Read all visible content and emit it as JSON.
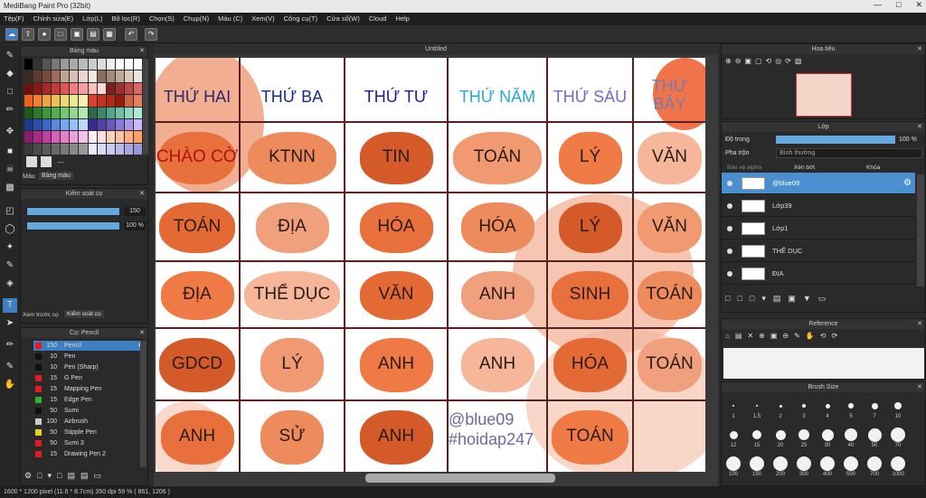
{
  "title": "MediBang Paint Pro (32bit)",
  "menu": [
    "Tệp(F)",
    "Chỉnh sửa(E)",
    "Lớp(L)",
    "Bộ lọc(R)",
    "Chọn(S)",
    "Chụp(N)",
    "Màu (C)",
    "Xem(V)",
    "Công cụ(T)",
    "Cửa sổ(W)",
    "Cloud",
    "Help"
  ],
  "palette": {
    "title": "Bảng màu",
    "tab1": "Màu",
    "tab2": "Bảng màu",
    "dash": "---"
  },
  "control": {
    "title": "Kiểm soát cọ",
    "size": "150",
    "opacity": "100 %",
    "tab1": "Xem trước cọ",
    "tab2": "Kiểm soát cọ"
  },
  "brush": {
    "title": "Cọ: Pencil",
    "items": [
      {
        "n": "150",
        "name": "Pencil",
        "color": "#e31b23"
      },
      {
        "n": "10",
        "name": "Pen",
        "color": "#111111"
      },
      {
        "n": "10",
        "name": "Pen (Sharp)",
        "color": "#111111"
      },
      {
        "n": "15",
        "name": "G Pen",
        "color": "#e31b23"
      },
      {
        "n": "15",
        "name": "Mapping Pen",
        "color": "#e31b23"
      },
      {
        "n": "15",
        "name": "Edge Pen",
        "color": "#2bb32b"
      },
      {
        "n": "50",
        "name": "Sumi",
        "color": "#111111"
      },
      {
        "n": "100",
        "name": "Airbrush",
        "color": "#cccccc"
      },
      {
        "n": "50",
        "name": "Stipple Pen",
        "color": "#e6d21a"
      },
      {
        "n": "50",
        "name": "Sumi 3",
        "color": "#e31b23"
      },
      {
        "n": "15",
        "name": "Drawing Pen 2",
        "color": "#e31b23"
      }
    ]
  },
  "canvas": {
    "tab": "Untitled",
    "days": [
      "THỨ HAI",
      "THỨ BA",
      "THỨ TƯ",
      "THỨ NĂM",
      "THỨ SÁU",
      "THỨ",
      "BẢY"
    ],
    "rows": [
      [
        "CHÀO CỜ",
        "KTNN",
        "TIN",
        "TOÁN",
        "LÝ",
        "VĂN"
      ],
      [
        "TOÁN",
        "ĐỊA",
        "HÓA",
        "HÓA",
        "LÝ",
        "VĂN"
      ],
      [
        "ĐỊA",
        "THỂ DỤC",
        "VĂN",
        "ANH",
        "SINH",
        "TOÁN"
      ],
      [
        "GDCD",
        "LÝ",
        "ANH",
        "ANH",
        "HÓA",
        "TOÁN"
      ],
      [
        "ANH",
        "SỬ",
        "ANH",
        "",
        "TOÁN",
        ""
      ]
    ],
    "watermark1": "@blue09",
    "watermark2": "#hoidap247"
  },
  "navigator": {
    "title": "Hoa tiêu"
  },
  "layers": {
    "title": "Lớp",
    "opacity_label": "Độ trong",
    "opacity_value": "100 %",
    "blend_label": "Pha trộn",
    "blend_value": "Bình thường",
    "protect": "Bảo vệ alpha",
    "clip": "Xén bớt",
    "lock": "Khóa",
    "items": [
      "@blue09",
      "Lớp39",
      "Lớp1",
      "THỂ DỤC",
      "ĐỊA"
    ]
  },
  "reference": {
    "title": "Reference"
  },
  "brushsize": {
    "title": "Brush Size",
    "sizes": [
      "1",
      "1.5",
      "2",
      "3",
      "4",
      "5",
      "7",
      "10",
      "12",
      "15",
      "20",
      "25",
      "30",
      "40",
      "50",
      "70",
      "100",
      "150",
      "200",
      "300",
      "400",
      "500",
      "700",
      "1000"
    ]
  },
  "status": "1600 * 1200 pixel   (11.6 * 8.7cm)   350 dpi   59 %   ( 861, 1206 )"
}
